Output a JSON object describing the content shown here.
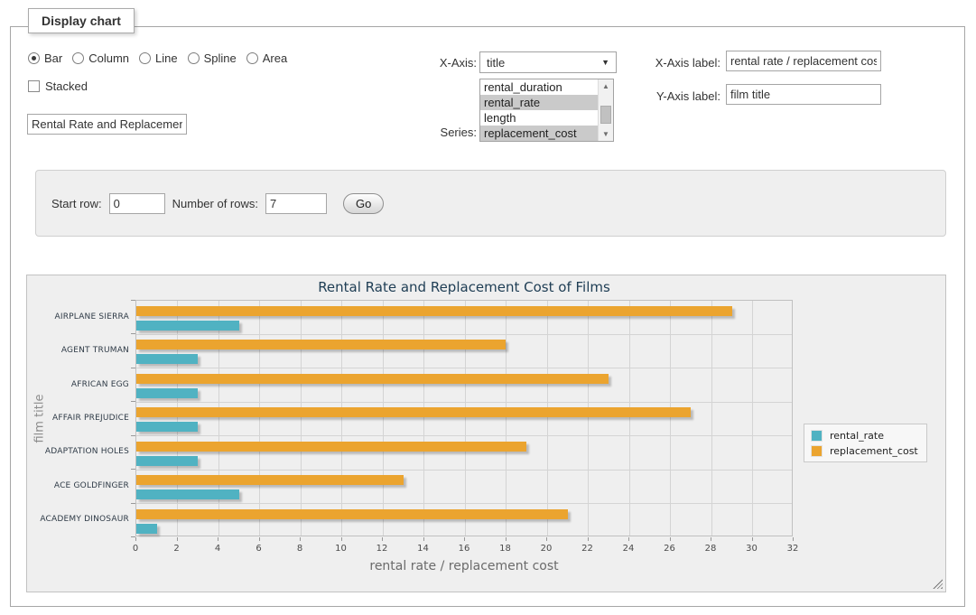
{
  "form": {
    "legend": "Display chart",
    "chart_types": [
      {
        "label": "Bar",
        "selected": true
      },
      {
        "label": "Column",
        "selected": false
      },
      {
        "label": "Line",
        "selected": false
      },
      {
        "label": "Spline",
        "selected": false
      },
      {
        "label": "Area",
        "selected": false
      }
    ],
    "stacked": {
      "label": "Stacked",
      "checked": false
    },
    "chart_title_input": {
      "value": "Rental Rate and Replacement Cost of Films"
    },
    "x_axis": {
      "label": "X-Axis:",
      "selected": "title"
    },
    "series_picker": {
      "label": "Series:",
      "options": [
        {
          "label": "rental_duration",
          "selected": false
        },
        {
          "label": "rental_rate",
          "selected": true
        },
        {
          "label": "length",
          "selected": false
        },
        {
          "label": "replacement_cost",
          "selected": true
        }
      ]
    },
    "x_axis_label": {
      "label": "X-Axis label:",
      "value": "rental rate / replacement cost"
    },
    "y_axis_label": {
      "label": "Y-Axis label:",
      "value": "film title"
    }
  },
  "rows_form": {
    "start_row_label": "Start row:",
    "start_row_value": "0",
    "num_rows_label": "Number of rows:",
    "num_rows_value": "7",
    "go_label": "Go"
  },
  "chart_data": {
    "type": "bar",
    "orientation": "horizontal",
    "title": "Rental Rate and Replacement Cost of Films",
    "xlabel": "rental rate / replacement cost",
    "ylabel": "film title",
    "categories": [
      "AIRPLANE SIERRA",
      "AGENT TRUMAN",
      "AFRICAN EGG",
      "AFFAIR PREJUDICE",
      "ADAPTATION HOLES",
      "ACE GOLDFINGER",
      "ACADEMY DINOSAUR"
    ],
    "series": [
      {
        "name": "rental_rate",
        "color": "#50b2c2",
        "values": [
          4.99,
          2.99,
          2.99,
          2.99,
          2.99,
          4.99,
          0.99
        ]
      },
      {
        "name": "replacement_cost",
        "color": "#eba42f",
        "values": [
          28.99,
          17.99,
          22.99,
          26.99,
          18.99,
          12.99,
          20.99
        ]
      }
    ],
    "xlim": [
      0,
      32
    ],
    "xticks": [
      0,
      2,
      4,
      6,
      8,
      10,
      12,
      14,
      16,
      18,
      20,
      22,
      24,
      26,
      28,
      30,
      32
    ],
    "grid": true,
    "legend_position": "right"
  }
}
